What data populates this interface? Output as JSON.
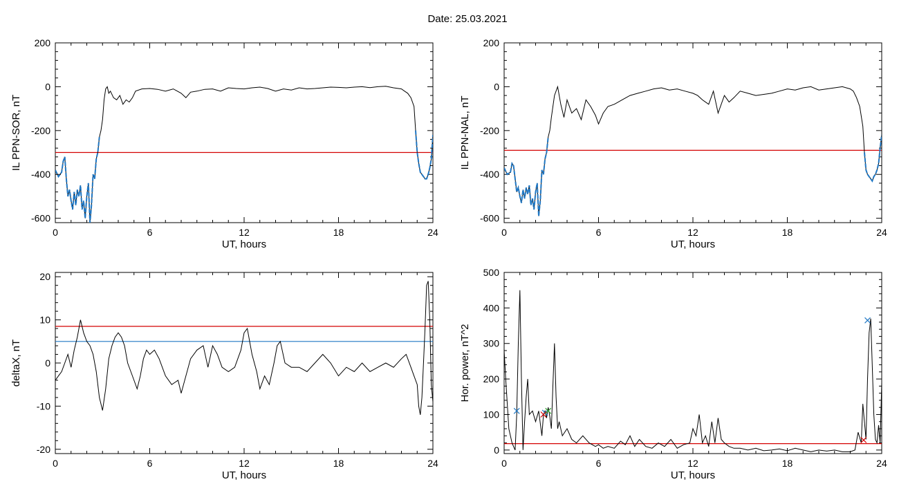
{
  "title": "Date:  25.03.2021",
  "colors": {
    "threshold_red": "#d40000",
    "threshold_blue": "#1f77c4",
    "marker_green": "#2ca02c",
    "data_black": "#000000"
  },
  "chart_data": [
    {
      "type": "line",
      "ylabel": "IL PPN-SOR, nT",
      "xlabel": "UT, hours",
      "xlim": [
        0,
        24
      ],
      "ylim": [
        -620,
        200
      ],
      "xticks": [
        0,
        6,
        12,
        18,
        24
      ],
      "yticks": [
        -600,
        -400,
        -200,
        0,
        200
      ],
      "threshold_red": -300,
      "highlight": {
        "color": "blue",
        "ranges": [
          [
            0,
            2.85
          ],
          [
            22.9,
            24
          ]
        ]
      },
      "x": [
        0,
        0.2,
        0.4,
        0.5,
        0.6,
        0.7,
        0.8,
        0.9,
        1.0,
        1.1,
        1.2,
        1.3,
        1.4,
        1.5,
        1.6,
        1.7,
        1.8,
        1.9,
        2.0,
        2.1,
        2.2,
        2.3,
        2.4,
        2.5,
        2.6,
        2.7,
        2.8,
        2.9,
        3.0,
        3.1,
        3.2,
        3.3,
        3.4,
        3.5,
        3.7,
        3.9,
        4.1,
        4.3,
        4.5,
        4.7,
        4.9,
        5.1,
        5.5,
        6,
        6.5,
        7,
        7.5,
        8,
        8.3,
        8.6,
        9,
        9.5,
        10,
        10.5,
        11,
        11.5,
        12,
        12.5,
        13,
        13.5,
        14,
        14.5,
        15,
        15.5,
        16,
        16.5,
        17,
        17.5,
        18,
        18.5,
        19,
        19.5,
        20,
        20.5,
        21,
        21.5,
        22,
        22.2,
        22.4,
        22.6,
        22.8,
        22.9,
        23.0,
        23.1,
        23.2,
        23.3,
        23.4,
        23.5,
        23.6,
        23.7,
        23.8,
        23.9,
        24.0
      ],
      "y": [
        -380,
        -410,
        -390,
        -340,
        -320,
        -420,
        -500,
        -470,
        -520,
        -560,
        -480,
        -540,
        -470,
        -500,
        -450,
        -560,
        -520,
        -600,
        -500,
        -440,
        -620,
        -540,
        -400,
        -420,
        -330,
        -300,
        -230,
        -200,
        -150,
        -60,
        -10,
        0,
        -30,
        -20,
        -50,
        -60,
        -40,
        -80,
        -60,
        -70,
        -50,
        -20,
        -10,
        -8,
        -12,
        -20,
        -10,
        -30,
        -50,
        -25,
        -20,
        -12,
        -10,
        -20,
        -5,
        -8,
        -10,
        -5,
        -2,
        -8,
        -20,
        -10,
        -15,
        -5,
        -10,
        -8,
        -5,
        -2,
        -3,
        -5,
        -2,
        0,
        -4,
        0,
        2,
        -5,
        -10,
        -20,
        -30,
        -50,
        -90,
        -200,
        -300,
        -350,
        -390,
        -400,
        -410,
        -420,
        -420,
        -400,
        -370,
        -330,
        -220
      ]
    },
    {
      "type": "line",
      "ylabel": "IL PPN-NAL, nT",
      "xlabel": "UT, hours",
      "xlim": [
        0,
        24
      ],
      "ylim": [
        -620,
        200
      ],
      "xticks": [
        0,
        6,
        12,
        18,
        24
      ],
      "yticks": [
        -600,
        -400,
        -200,
        0,
        200
      ],
      "threshold_red": -290,
      "highlight": {
        "color": "blue",
        "ranges": [
          [
            0,
            2.85
          ],
          [
            22.9,
            24
          ]
        ]
      },
      "x": [
        0,
        0.2,
        0.4,
        0.5,
        0.6,
        0.7,
        0.8,
        0.9,
        1.0,
        1.1,
        1.2,
        1.3,
        1.4,
        1.5,
        1.6,
        1.7,
        1.8,
        1.9,
        2.0,
        2.1,
        2.2,
        2.3,
        2.4,
        2.5,
        2.6,
        2.7,
        2.8,
        2.9,
        3.0,
        3.2,
        3.4,
        3.6,
        3.8,
        4.0,
        4.3,
        4.6,
        4.9,
        5.2,
        5.5,
        5.8,
        6.0,
        6.3,
        6.6,
        7,
        7.5,
        8,
        8.5,
        9,
        9.5,
        10,
        10.5,
        11,
        11.5,
        12,
        12.3,
        12.6,
        13,
        13.3,
        13.6,
        14,
        14.3,
        14.6,
        15,
        15.5,
        16,
        16.5,
        17,
        17.5,
        18,
        18.5,
        19,
        19.5,
        20,
        20.5,
        21,
        21.5,
        22,
        22.2,
        22.4,
        22.6,
        22.8,
        22.9,
        23.0,
        23.1,
        23.2,
        23.3,
        23.4,
        23.5,
        23.6,
        23.7,
        23.8,
        23.9,
        24.0
      ],
      "y": [
        -370,
        -400,
        -390,
        -350,
        -360,
        -420,
        -480,
        -460,
        -500,
        -530,
        -470,
        -510,
        -460,
        -490,
        -450,
        -540,
        -510,
        -560,
        -480,
        -440,
        -590,
        -520,
        -380,
        -400,
        -330,
        -300,
        -230,
        -200,
        -140,
        -40,
        0,
        -80,
        -140,
        -60,
        -120,
        -100,
        -150,
        -60,
        -90,
        -130,
        -170,
        -120,
        -90,
        -80,
        -60,
        -40,
        -30,
        -20,
        -10,
        -5,
        -15,
        -10,
        -20,
        -30,
        -40,
        -60,
        -80,
        -20,
        -120,
        -40,
        -70,
        -50,
        -20,
        -30,
        -40,
        -35,
        -30,
        -20,
        -10,
        -15,
        -5,
        0,
        -15,
        -10,
        -5,
        0,
        -10,
        -20,
        -50,
        -90,
        -180,
        -300,
        -380,
        -400,
        -410,
        -420,
        -430,
        -410,
        -400,
        -380,
        -350,
        -280,
        -220
      ]
    },
    {
      "type": "line",
      "ylabel": "deltaX, nT",
      "xlabel": "UT, hours",
      "xlim": [
        0,
        24
      ],
      "ylim": [
        -21,
        21
      ],
      "xticks": [
        0,
        6,
        12,
        18,
        24
      ],
      "yticks": [
        -20,
        -10,
        0,
        10,
        20
      ],
      "threshold_red": 8.5,
      "threshold_blue": 5,
      "x": [
        0,
        0.2,
        0.4,
        0.6,
        0.8,
        1.0,
        1.2,
        1.4,
        1.6,
        1.8,
        2.0,
        2.2,
        2.4,
        2.6,
        2.8,
        3.0,
        3.2,
        3.4,
        3.6,
        3.8,
        4.0,
        4.2,
        4.4,
        4.6,
        4.8,
        5.0,
        5.2,
        5.4,
        5.6,
        5.8,
        6.0,
        6.3,
        6.6,
        7.0,
        7.4,
        7.8,
        8.0,
        8.3,
        8.6,
        9.0,
        9.4,
        9.7,
        10.0,
        10.3,
        10.6,
        11.0,
        11.4,
        11.8,
        12.0,
        12.2,
        12.5,
        12.8,
        13.0,
        13.3,
        13.6,
        13.9,
        14.1,
        14.3,
        14.6,
        15.0,
        15.5,
        16,
        16.5,
        17,
        17.5,
        18,
        18.5,
        19,
        19.5,
        20,
        20.5,
        21,
        21.5,
        22,
        22.3,
        22.6,
        22.8,
        23.0,
        23.1,
        23.2,
        23.3,
        23.4,
        23.5,
        23.6,
        23.7,
        23.8,
        23.9,
        24.0
      ],
      "y": [
        -4,
        -3,
        -2,
        0,
        2,
        -1,
        3,
        6,
        10,
        7,
        5,
        4,
        2,
        -2,
        -8,
        -11,
        -6,
        1,
        4,
        6,
        7,
        6,
        4,
        0,
        -2,
        -4,
        -6,
        -3,
        1,
        3,
        2,
        3,
        1,
        -3,
        -5,
        -4,
        -7,
        -3,
        1,
        3,
        4,
        -1,
        4,
        2,
        -1,
        -2,
        -1,
        3,
        7,
        8,
        2,
        -2,
        -6,
        -3,
        -5,
        0,
        4,
        5,
        0,
        -1,
        -1,
        -2,
        0,
        2,
        0,
        -3,
        -1,
        -2,
        0,
        -2,
        -1,
        0,
        -1,
        1,
        2,
        -1,
        -3,
        -5,
        -10,
        -12,
        -8,
        0,
        8,
        18,
        19,
        10,
        -5,
        -9
      ]
    },
    {
      "type": "line",
      "ylabel": "Hor. power, nT^2",
      "xlabel": "UT, hours",
      "xlim": [
        0,
        24
      ],
      "ylim": [
        -10,
        500
      ],
      "xticks": [
        0,
        6,
        12,
        18,
        24
      ],
      "yticks": [
        0,
        100,
        200,
        300,
        400,
        500
      ],
      "threshold_red": 18,
      "x": [
        0,
        0.1,
        0.3,
        0.5,
        0.7,
        0.8,
        0.9,
        1.0,
        1.1,
        1.2,
        1.3,
        1.4,
        1.5,
        1.6,
        1.8,
        2.0,
        2.2,
        2.4,
        2.5,
        2.6,
        2.7,
        2.8,
        2.9,
        3.0,
        3.1,
        3.2,
        3.3,
        3.4,
        3.5,
        3.7,
        4.0,
        4.3,
        4.6,
        5.0,
        5.4,
        5.8,
        6.0,
        6.3,
        6.6,
        7,
        7.4,
        7.7,
        8,
        8.3,
        8.6,
        9,
        9.4,
        9.8,
        10.2,
        10.6,
        11,
        11.4,
        11.8,
        12.0,
        12.2,
        12.4,
        12.6,
        12.8,
        13.0,
        13.2,
        13.4,
        13.6,
        13.8,
        14.0,
        14.3,
        14.6,
        15,
        15.5,
        16,
        16.5,
        17,
        17.5,
        18,
        18.5,
        19,
        19.5,
        20,
        20.5,
        21,
        21.5,
        22,
        22.3,
        22.5,
        22.7,
        22.8,
        22.9,
        23.0,
        23.1,
        23.2,
        23.3,
        23.4,
        23.5,
        23.6,
        23.7,
        23.8,
        23.9,
        24.0
      ],
      "y": [
        280,
        200,
        60,
        20,
        0,
        100,
        300,
        450,
        200,
        0,
        80,
        150,
        200,
        100,
        110,
        80,
        110,
        40,
        100,
        110,
        90,
        120,
        95,
        60,
        180,
        300,
        150,
        60,
        80,
        40,
        60,
        30,
        20,
        40,
        20,
        10,
        15,
        5,
        10,
        5,
        25,
        15,
        40,
        10,
        30,
        10,
        5,
        20,
        10,
        30,
        5,
        15,
        20,
        60,
        40,
        100,
        20,
        40,
        10,
        80,
        20,
        90,
        30,
        20,
        10,
        5,
        5,
        0,
        5,
        -2,
        0,
        3,
        -2,
        5,
        0,
        -5,
        0,
        -3,
        0,
        -5,
        -5,
        0,
        50,
        20,
        130,
        80,
        30,
        200,
        330,
        370,
        240,
        100,
        30,
        20,
        70,
        20,
        190
      ]
    }
  ]
}
